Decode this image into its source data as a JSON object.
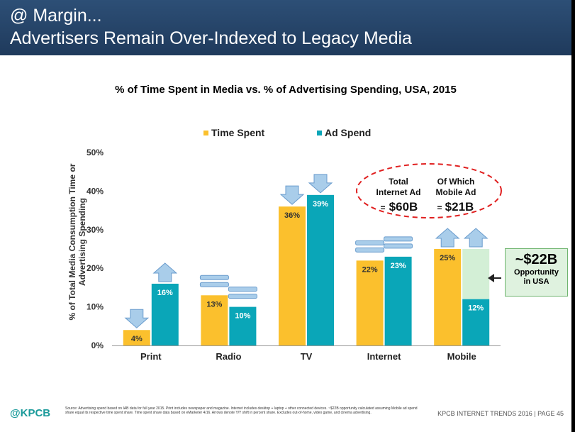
{
  "header": {
    "line1": "@ Margin...",
    "line2": "Advertisers Remain Over-Indexed to Legacy Media"
  },
  "chart_data": {
    "type": "bar",
    "title": "% of Time Spent in Media vs. % of Advertising Spending, USA, 2015",
    "ylabel": "% of Total Media Consumption Time or Advertising Spending",
    "xlabel": "",
    "categories": [
      "Print",
      "Radio",
      "TV",
      "Internet",
      "Mobile"
    ],
    "series": [
      {
        "name": "Time Spent",
        "color": "#fbc02d",
        "values": [
          4,
          13,
          36,
          22,
          25
        ],
        "labels": [
          "4%",
          "13%",
          "36%",
          "22%",
          "25%"
        ]
      },
      {
        "name": "Ad Spend",
        "color": "#0aa6b8",
        "values": [
          16,
          10,
          39,
          23,
          12
        ],
        "labels": [
          "16%",
          "10%",
          "39%",
          "23%",
          "12%"
        ]
      }
    ],
    "ylim": [
      0,
      50
    ],
    "yticks": [
      0,
      10,
      20,
      30,
      40,
      50
    ],
    "ytick_labels": [
      "0%",
      "10%",
      "20%",
      "30%",
      "40%",
      "50%"
    ],
    "legend_position": "top-center",
    "grid": false,
    "arrows": {
      "Time Spent": [
        "down",
        "flat",
        "down",
        "flat",
        "up"
      ],
      "Ad Spend": [
        "up",
        "flat",
        "down",
        "flat",
        "up"
      ]
    },
    "mobile_gap_top": 25,
    "mobile_gap_color": "#d3efd6"
  },
  "annotation_oval": {
    "col1_line1": "Total",
    "col1_line2": "Internet Ad",
    "col1_eq": "=",
    "col1_value": "$60B",
    "col2_line1": "Of Which",
    "col2_line2": "Mobile Ad",
    "col2_eq": "=",
    "col2_value": "$21B"
  },
  "opportunity": {
    "value": "~$22B",
    "line1": "Opportunity",
    "line2": "in USA"
  },
  "footer": {
    "logo": "@KPCB",
    "source": "Source: Advertising spend based on IAB data for full year 2015. Print includes newspaper and magazine. Internet includes desktop + laptop + other connected devices. ~$22B opportunity calculated assuming Mobile ad spend share equal its respective time spent share. Time spent share data based on eMarketer 4/16. Arrows denote Y/Y shift in percent share. Excludes out-of-home, video game, and cinema advertising.",
    "page": "KPCB INTERNET TRENDS 2016  |  PAGE 45"
  },
  "colors": {
    "header_bg": "#264769",
    "arrow_fill": "#a9cdea",
    "arrow_stroke": "#6a9ccd",
    "oval_border": "#e02020",
    "callout_border": "#6fb56f",
    "callout_bg": "#dff2df"
  }
}
